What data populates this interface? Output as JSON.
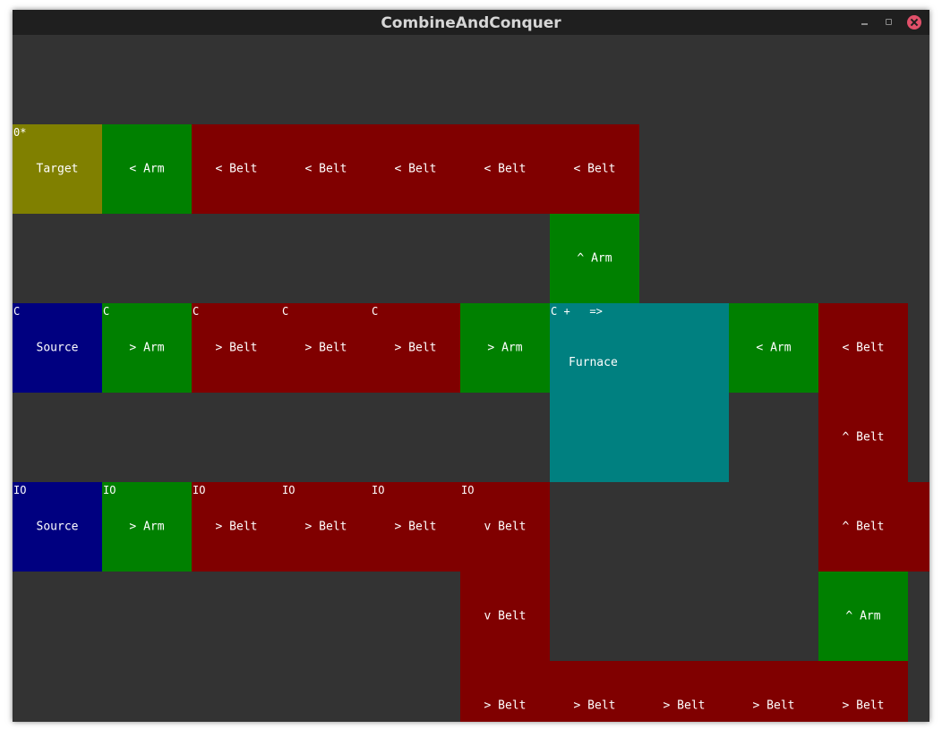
{
  "window": {
    "title": "CombineAndConquer"
  },
  "cells": [
    {
      "kind": "target",
      "c": 0,
      "r": 1,
      "w": 1,
      "h": 1,
      "label": "Target",
      "tag": "0*"
    },
    {
      "kind": "arm",
      "c": 1,
      "r": 1,
      "w": 1,
      "h": 1,
      "label": "< Arm",
      "tag": ""
    },
    {
      "kind": "belt",
      "c": 2,
      "r": 1,
      "w": 1,
      "h": 1,
      "label": "< Belt",
      "tag": ""
    },
    {
      "kind": "belt",
      "c": 3,
      "r": 1,
      "w": 1,
      "h": 1,
      "label": "< Belt",
      "tag": ""
    },
    {
      "kind": "belt",
      "c": 4,
      "r": 1,
      "w": 1,
      "h": 1,
      "label": "< Belt",
      "tag": ""
    },
    {
      "kind": "belt",
      "c": 5,
      "r": 1,
      "w": 1,
      "h": 1,
      "label": "< Belt",
      "tag": ""
    },
    {
      "kind": "belt",
      "c": 6,
      "r": 1,
      "w": 1,
      "h": 1,
      "label": "< Belt",
      "tag": ""
    },
    {
      "kind": "arm",
      "c": 6,
      "r": 2,
      "w": 1,
      "h": 1,
      "label": "^ Arm",
      "tag": ""
    },
    {
      "kind": "source",
      "c": 0,
      "r": 3,
      "w": 1,
      "h": 1,
      "label": "Source",
      "tag": "C"
    },
    {
      "kind": "arm",
      "c": 1,
      "r": 3,
      "w": 1,
      "h": 1,
      "label": "> Arm",
      "tag": "C"
    },
    {
      "kind": "belt",
      "c": 2,
      "r": 3,
      "w": 1,
      "h": 1,
      "label": "> Belt",
      "tag": "C"
    },
    {
      "kind": "belt",
      "c": 3,
      "r": 3,
      "w": 1,
      "h": 1,
      "label": "> Belt",
      "tag": "C"
    },
    {
      "kind": "belt",
      "c": 4,
      "r": 3,
      "w": 1,
      "h": 1,
      "label": "> Belt",
      "tag": "C"
    },
    {
      "kind": "arm",
      "c": 5,
      "r": 3,
      "w": 1,
      "h": 1,
      "label": "> Arm",
      "tag": ""
    },
    {
      "kind": "furnace",
      "c": 6,
      "r": 3,
      "w": 2,
      "h": 2,
      "label": "Furnace",
      "tag": "C +   =>"
    },
    {
      "kind": "arm",
      "c": 8,
      "r": 3,
      "w": 1,
      "h": 1,
      "label": "< Arm",
      "tag": ""
    },
    {
      "kind": "belt",
      "c": 9,
      "r": 3,
      "w": 1,
      "h": 1,
      "label": "< Belt",
      "tag": ""
    },
    {
      "kind": "belt",
      "c": 9,
      "r": 4,
      "w": 1,
      "h": 1,
      "label": "^ Belt",
      "tag": ""
    },
    {
      "kind": "source",
      "c": 0,
      "r": 5,
      "w": 1,
      "h": 1,
      "label": "Source",
      "tag": "IO"
    },
    {
      "kind": "arm",
      "c": 1,
      "r": 5,
      "w": 1,
      "h": 1,
      "label": "> Arm",
      "tag": "IO"
    },
    {
      "kind": "belt",
      "c": 2,
      "r": 5,
      "w": 1,
      "h": 1,
      "label": "> Belt",
      "tag": "IO"
    },
    {
      "kind": "belt",
      "c": 3,
      "r": 5,
      "w": 1,
      "h": 1,
      "label": "> Belt",
      "tag": "IO"
    },
    {
      "kind": "belt",
      "c": 4,
      "r": 5,
      "w": 1,
      "h": 1,
      "label": "> Belt",
      "tag": "IO"
    },
    {
      "kind": "belt",
      "c": 5,
      "r": 5,
      "w": 1,
      "h": 1,
      "label": "v Belt",
      "tag": "IO"
    },
    {
      "kind": "belt",
      "c": 9,
      "r": 5,
      "w": 1.24,
      "h": 1,
      "label": "^ Belt",
      "tag": ""
    },
    {
      "kind": "belt",
      "c": 5,
      "r": 6,
      "w": 1,
      "h": 1,
      "label": "v Belt",
      "tag": ""
    },
    {
      "kind": "arm",
      "c": 9,
      "r": 6,
      "w": 1,
      "h": 1,
      "label": "^ Arm",
      "tag": ""
    },
    {
      "kind": "belt",
      "c": 5,
      "r": 7,
      "w": 1,
      "h": 1,
      "label": "> Belt",
      "tag": ""
    },
    {
      "kind": "belt",
      "c": 6,
      "r": 7,
      "w": 1,
      "h": 1,
      "label": "> Belt",
      "tag": ""
    },
    {
      "kind": "belt",
      "c": 7,
      "r": 7,
      "w": 1,
      "h": 1,
      "label": "> Belt",
      "tag": ""
    },
    {
      "kind": "belt",
      "c": 8,
      "r": 7,
      "w": 1,
      "h": 1,
      "label": "> Belt",
      "tag": ""
    },
    {
      "kind": "belt",
      "c": 9,
      "r": 7,
      "w": 1,
      "h": 1,
      "label": "> Belt",
      "tag": ""
    }
  ]
}
